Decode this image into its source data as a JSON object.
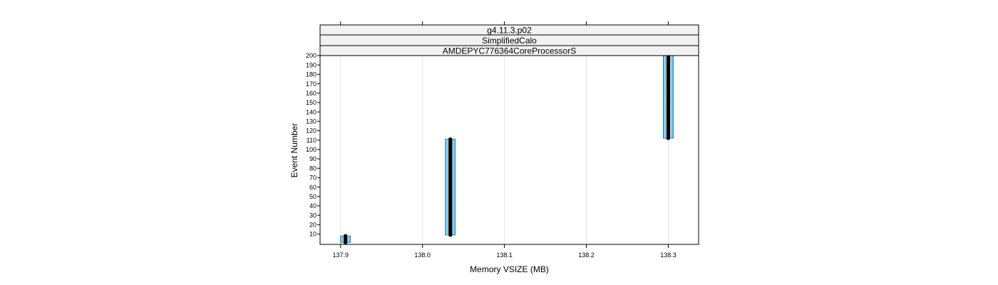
{
  "chart_data": {
    "type": "scatter",
    "strips": [
      "g4.11.3.p02",
      "SimplifiedCalo",
      "AMDEPYC776364CoreProcessorS"
    ],
    "xlabel": "Memory VSIZE (MB)",
    "ylabel": "Event Number",
    "xlim": [
      137.875,
      138.337
    ],
    "ylim": [
      -1,
      200
    ],
    "x_ticks": [
      137.9,
      138.0,
      138.1,
      138.2,
      138.3
    ],
    "x_tick_labels": [
      "137.9",
      "138.0",
      "138.1",
      "138.2",
      "138.3"
    ],
    "y_ticks": [
      10,
      20,
      30,
      40,
      50,
      60,
      70,
      80,
      90,
      100,
      110,
      120,
      130,
      140,
      150,
      160,
      170,
      180,
      190,
      200
    ],
    "grid": "vertical",
    "series": [
      {
        "x": 137.906,
        "y_start": 1,
        "y_end": 8
      },
      {
        "x": 138.034,
        "y_start": 9,
        "y_end": 111
      },
      {
        "x": 138.3,
        "y_start": 112,
        "y_end": 200
      }
    ],
    "colors": {
      "points": "#000000",
      "band": "#1e90c8",
      "grid": "#e6e6e6",
      "strip_bg": "#f2f2f2"
    }
  }
}
